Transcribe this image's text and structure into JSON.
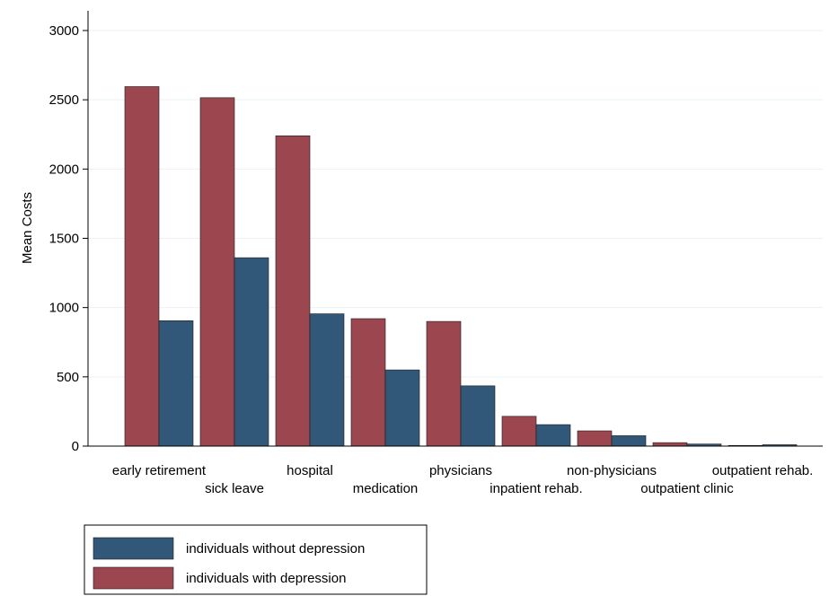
{
  "chart_data": {
    "type": "bar",
    "ylabel": "Mean Costs",
    "xlabel": "",
    "ylim": [
      0,
      3000
    ],
    "yticks": [
      0,
      500,
      1000,
      1500,
      2000,
      2500,
      3000
    ],
    "grid": true,
    "categories": [
      "early retirement",
      "sick leave",
      "hospital",
      "medication",
      "physicians",
      "inpatient rehab.",
      "non-physicians",
      "outpatient clinic",
      "outpatient rehab."
    ],
    "series": [
      {
        "name": "individuals with depression",
        "color": "#9c4650",
        "values": [
          2595,
          2515,
          2240,
          920,
          900,
          215,
          110,
          25,
          5
        ]
      },
      {
        "name": "individuals without depression",
        "color": "#315879",
        "values": [
          905,
          1360,
          955,
          550,
          435,
          155,
          75,
          15,
          10
        ]
      }
    ],
    "legend": {
      "placement": "bottom-left",
      "order": [
        "individuals without depression",
        "individuals with depression"
      ]
    }
  }
}
